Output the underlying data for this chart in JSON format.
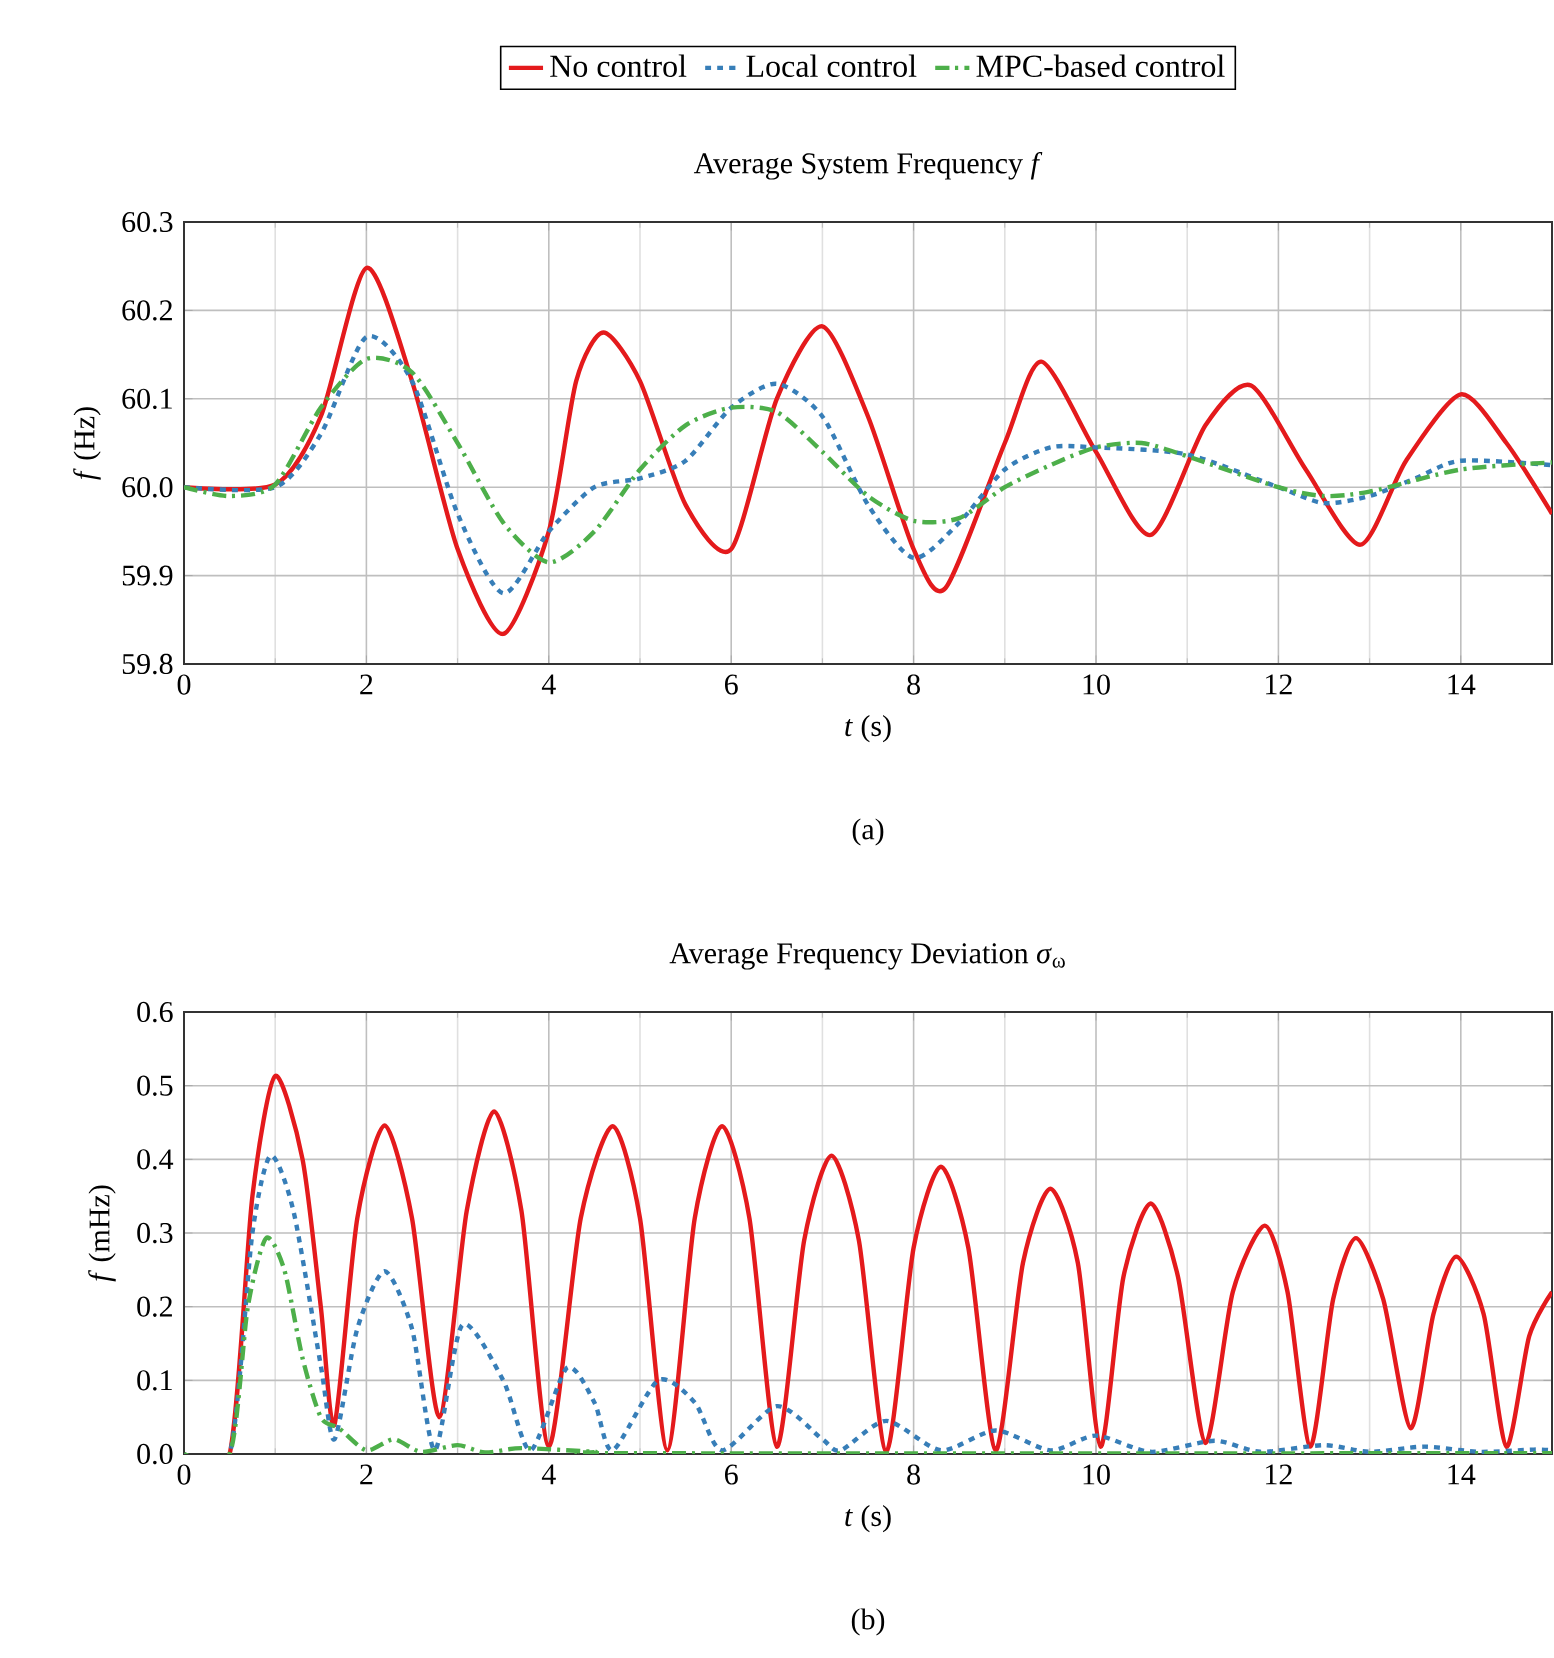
{
  "chart_data": [
    {
      "type": "line",
      "title": "Average System Frequency *f*",
      "xlabel": "*t* (s)",
      "ylabel": "*f* (Hz)",
      "annotations": [
        "(a)"
      ],
      "xlim": [
        0,
        15
      ],
      "xticks": [
        0,
        2,
        4,
        6,
        8,
        10,
        12,
        14
      ],
      "ylim": [
        59.8,
        60.3
      ],
      "yticks": [
        {
          "value": 59.8,
          "label": "59.8"
        },
        {
          "value": 59.9,
          "label": "59.9"
        },
        {
          "value": 60.0,
          "label": "60.0"
        },
        {
          "value": 60.1,
          "label": "60.1"
        },
        {
          "value": 60.2,
          "label": "60.2"
        },
        {
          "value": 60.3,
          "label": "60.3"
        }
      ],
      "grid": true,
      "legend": "top",
      "marker": "none",
      "series": [
        {
          "name": "No control",
          "color": "#e41a1c",
          "line_style": "solid",
          "x": [
            0,
            1,
            1.5,
            2,
            2.5,
            3,
            3.5,
            4,
            4.3,
            4.6,
            5,
            5.5,
            6,
            6.5,
            7,
            7.5,
            8,
            8.35,
            9,
            9.4,
            10,
            10.6,
            11.2,
            11.7,
            12.3,
            12.9,
            13.4,
            14,
            14.5,
            15
          ],
          "values": [
            60.0,
            60.003,
            60.08,
            60.248,
            60.12,
            59.93,
            59.834,
            59.95,
            60.12,
            60.175,
            60.12,
            59.98,
            59.93,
            60.1,
            60.182,
            60.08,
            59.93,
            59.886,
            60.05,
            60.142,
            60.04,
            59.946,
            60.07,
            60.115,
            60.02,
            59.935,
            60.03,
            60.105,
            60.05,
            59.97
          ]
        },
        {
          "name": "Local control",
          "color": "#377eb8",
          "line_style": "dashed",
          "x": [
            0,
            1,
            1.5,
            2,
            2.5,
            3,
            3.5,
            4,
            4.5,
            5,
            5.5,
            6,
            6.5,
            7,
            7.5,
            8,
            8.5,
            9,
            9.5,
            10,
            11,
            12,
            12.5,
            13,
            13.5,
            14,
            15
          ],
          "values": [
            60.0,
            60.0,
            60.06,
            60.17,
            60.12,
            59.97,
            59.88,
            59.95,
            60.0,
            60.01,
            60.03,
            60.09,
            60.117,
            60.08,
            59.98,
            59.92,
            59.96,
            60.02,
            60.045,
            60.045,
            60.037,
            60.0,
            59.982,
            59.99,
            60.01,
            60.03,
            60.025
          ]
        },
        {
          "name": "MPC-based control",
          "color": "#4daf4a",
          "line_style": "dashdot",
          "x": [
            0,
            0.5,
            1,
            1.5,
            2,
            2.5,
            3,
            3.5,
            4,
            4.5,
            5,
            5.5,
            6,
            6.5,
            7,
            7.5,
            8,
            8.5,
            9,
            9.5,
            10,
            10.5,
            11,
            12,
            12.5,
            13,
            14,
            15
          ],
          "values": [
            60.0,
            59.99,
            60.003,
            60.09,
            60.145,
            60.13,
            60.05,
            59.96,
            59.915,
            59.95,
            60.02,
            60.07,
            60.09,
            60.085,
            60.04,
            59.99,
            59.962,
            59.965,
            60.0,
            60.025,
            60.045,
            60.05,
            60.035,
            60.0,
            59.99,
            59.995,
            60.02,
            60.028
          ]
        }
      ]
    },
    {
      "type": "line",
      "title": "Average Frequency Deviation *σ*$_{ω}$",
      "xlabel": "*t* (s)",
      "ylabel": "*f* (mHz)",
      "annotations": [
        "(b)"
      ],
      "xlim": [
        0,
        15
      ],
      "xticks": [
        0,
        2,
        4,
        6,
        8,
        10,
        12,
        14
      ],
      "ylim": [
        0,
        0.6
      ],
      "yticks": [
        {
          "value": 0,
          "label": "0.0"
        },
        0.1,
        0.2,
        0.3,
        0.4,
        0.5,
        0.6
      ],
      "grid": true,
      "marker": "none",
      "series": [
        {
          "color": "#e41a1c",
          "line_style": "solid",
          "x": [
            0,
            0.5,
            0.75,
            1.0,
            1.3,
            1.5,
            1.65,
            1.9,
            2.2,
            2.5,
            2.8,
            3.1,
            3.4,
            3.7,
            4.0,
            4.35,
            4.7,
            5.0,
            5.3,
            5.6,
            5.9,
            6.2,
            6.5,
            6.8,
            7.1,
            7.4,
            7.7,
            8.0,
            8.3,
            8.6,
            8.9,
            9.2,
            9.5,
            9.8,
            10.05,
            10.3,
            10.6,
            10.9,
            11.2,
            11.5,
            11.85,
            12.1,
            12.35,
            12.6,
            12.85,
            13.15,
            13.45,
            13.7,
            13.95,
            14.25,
            14.5,
            14.75,
            15
          ],
          "values": [
            0,
            0,
            0.35,
            0.513,
            0.4,
            0.2,
            0.04,
            0.32,
            0.446,
            0.32,
            0.05,
            0.33,
            0.465,
            0.33,
            0.01,
            0.32,
            0.445,
            0.32,
            0.005,
            0.32,
            0.445,
            0.32,
            0.01,
            0.29,
            0.405,
            0.29,
            0.003,
            0.28,
            0.39,
            0.28,
            0.005,
            0.26,
            0.36,
            0.26,
            0.01,
            0.24,
            0.34,
            0.24,
            0.015,
            0.22,
            0.31,
            0.22,
            0.01,
            0.21,
            0.293,
            0.21,
            0.035,
            0.19,
            0.268,
            0.19,
            0.01,
            0.16,
            0.22
          ]
        },
        {
          "color": "#377eb8",
          "line_style": "dashed",
          "x": [
            0,
            0.5,
            0.75,
            0.95,
            1.2,
            1.5,
            1.65,
            1.9,
            2.2,
            2.5,
            2.75,
            3.05,
            3.5,
            3.8,
            4.2,
            4.5,
            4.7,
            5.2,
            5.6,
            5.9,
            6.5,
            7.0,
            7.2,
            7.7,
            8.3,
            8.9,
            9.5,
            10.0,
            10.6,
            11.3,
            11.8,
            12.5,
            13.0,
            13.6,
            14.2,
            14.8,
            15
          ],
          "values": [
            0,
            0,
            0.3,
            0.405,
            0.33,
            0.12,
            0.02,
            0.17,
            0.248,
            0.17,
            0.005,
            0.175,
            0.1,
            0.005,
            0.117,
            0.07,
            0.005,
            0.1,
            0.07,
            0.005,
            0.065,
            0.02,
            0.005,
            0.045,
            0.005,
            0.032,
            0.005,
            0.025,
            0.003,
            0.018,
            0.003,
            0.012,
            0.003,
            0.01,
            0.003,
            0.006,
            0.005
          ]
        },
        {
          "color": "#4daf4a",
          "line_style": "dashdot",
          "x": [
            0,
            0.5,
            0.7,
            0.9,
            1.1,
            1.3,
            1.5,
            1.7,
            2.0,
            2.3,
            2.6,
            3.0,
            3.3,
            3.7,
            4.5,
            5,
            15
          ],
          "values": [
            0,
            0,
            0.2,
            0.293,
            0.25,
            0.13,
            0.05,
            0.035,
            0.005,
            0.02,
            0.003,
            0.012,
            0.002,
            0.008,
            0.003,
            0.001,
            0.001
          ]
        }
      ]
    }
  ]
}
